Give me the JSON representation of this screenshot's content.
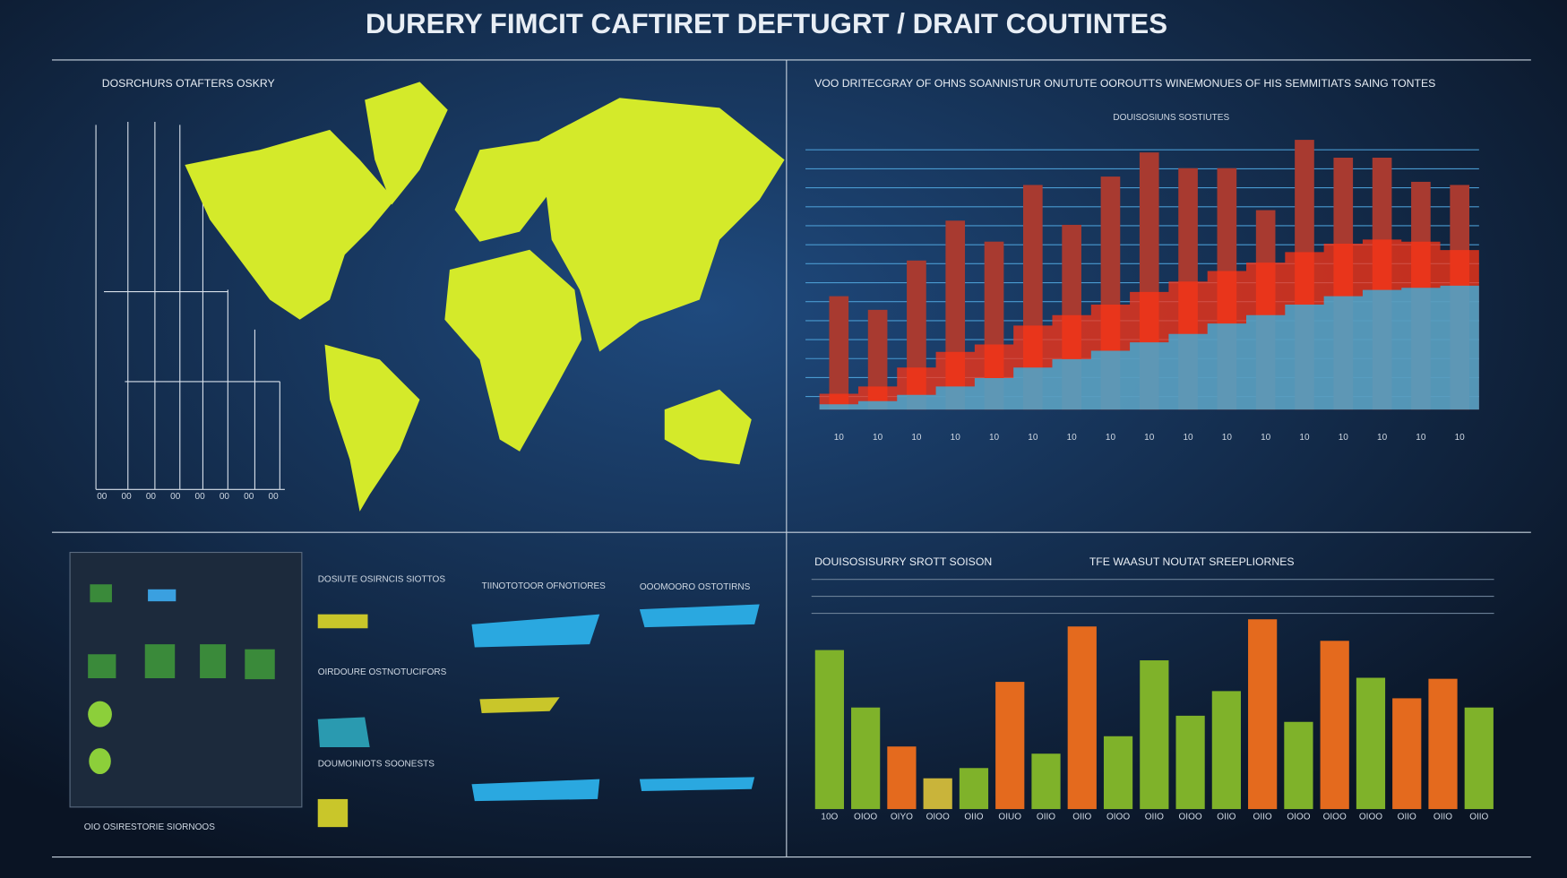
{
  "header": {
    "title": "DURERY FIMCIT CAFTIRET DEFTUGRT / DRAIT COUTINTES"
  },
  "map_panel": {
    "title": "DOSRCHURS OTAFTERS OSKRY",
    "axis_labels": [
      "00",
      "00",
      "00",
      "00",
      "00",
      "00",
      "00",
      "00"
    ]
  },
  "side_panel": {
    "lines": [
      "DOSIUTE OSIRNCIS SIOTTOS",
      "OIRDOURE OSTNOTUCIFORS",
      "DOUMOINIOTS SOONESTS",
      "TIINOTOTOOR OFNOTIORES",
      "OOOMOORO OSTOTIRNS"
    ],
    "footer": "OIO OSIRESTORIE SIORNOOS"
  },
  "chart_data": [
    {
      "type": "bar",
      "title": "VOO DRITECGRAY OF OHNS SOANNISTUR ONUTUTE OOROUTTS WINEMONUES OF HIS SEMMITIATS SAING TONTES",
      "subtitle": "DOUISOSIUNS SOSTIUTES",
      "categories": [
        "10",
        "10",
        "10",
        "10",
        "10",
        "10",
        "10",
        "10",
        "10",
        "10",
        "10",
        "10",
        "10",
        "10",
        "10",
        "10",
        "10"
      ],
      "series": [
        {
          "color": "#a83a30",
          "values": [
            108,
            95,
            142,
            180,
            160,
            214,
            176,
            222,
            245,
            230,
            230,
            190,
            257,
            240,
            240,
            217,
            214
          ]
        },
        {
          "type": "area",
          "color": "#ff3414",
          "values": [
            15,
            22,
            40,
            55,
            62,
            80,
            90,
            100,
            112,
            122,
            132,
            140,
            150,
            158,
            162,
            160,
            152
          ]
        },
        {
          "type": "area",
          "color": "#2fb8ea",
          "values": [
            5,
            8,
            14,
            22,
            30,
            40,
            48,
            56,
            64,
            72,
            82,
            90,
            100,
            108,
            114,
            116,
            118
          ]
        }
      ]
    },
    {
      "type": "bar",
      "title": "DOUISOSISURRY SROTT SOISON",
      "subtitle": "TFE WAASUT NOUTAT SREEPLIORNES",
      "categories": [
        "10O",
        "OIOO",
        "OIYO",
        "OIOO",
        "OIIO",
        "OIUO",
        "OIIO",
        "OIIO",
        "OIOO",
        "OIIO",
        "OIOO",
        "OIIO",
        "OIIO",
        "OIOO",
        "OIOO",
        "OIOO",
        "OIIO",
        "OIIO",
        "OIIO"
      ],
      "values": [
        155,
        99,
        61,
        30,
        40,
        124,
        54,
        178,
        71,
        145,
        91,
        115,
        185,
        85,
        164,
        128,
        108,
        127,
        99
      ],
      "colors": [
        "#7fb22a",
        "#7fb22a",
        "#e46a1e",
        "#c9b43a",
        "#7fb22a",
        "#e46a1e",
        "#7fb22a",
        "#e46a1e",
        "#7fb22a",
        "#7fb22a",
        "#7fb22a",
        "#7fb22a",
        "#e46a1e",
        "#7fb22a",
        "#e46a1e",
        "#7fb22a",
        "#e46a1e",
        "#e46a1e",
        "#7fb22a"
      ]
    }
  ]
}
